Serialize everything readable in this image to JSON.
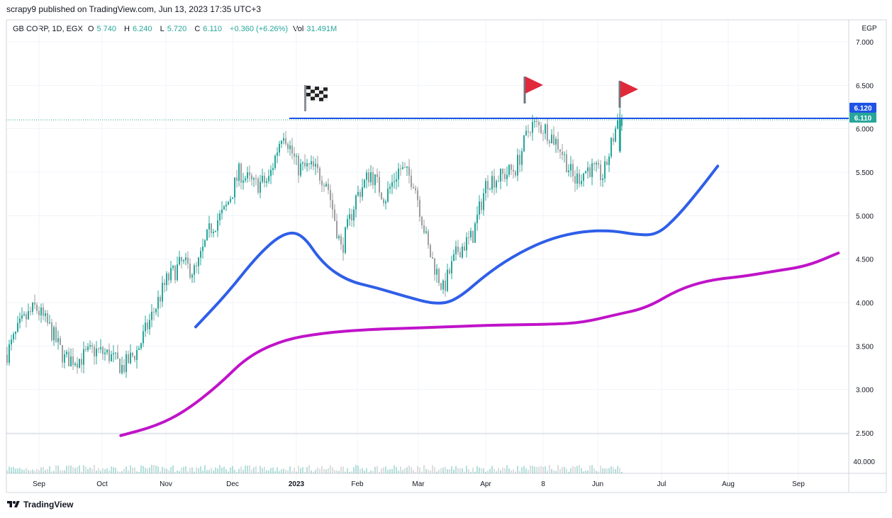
{
  "header": {
    "published": "scrapy9 published on TradingView.com, Jun 13, 2023 17:35 UTC+3"
  },
  "legend": {
    "symbol": "GB CORP, 1D, EGX",
    "open_label": "O",
    "open": "5.740",
    "high_label": "H",
    "high": "6.240",
    "low_label": "L",
    "low": "5.720",
    "close_label": "C",
    "close": "6.110",
    "change": "+0.360 (+6.26%)",
    "vol_label": "Vol",
    "volume": "31.491M"
  },
  "footer": {
    "brand": "TradingView"
  },
  "colors": {
    "up": "#26a69a",
    "down": "#9e9e9e",
    "hline": "#1e53e5",
    "ma_fast": "#2f5ee8",
    "ma_slow": "#c013c9",
    "flag": "#e0293b",
    "grid": "#f0f3fa"
  },
  "chart_data": {
    "type": "line",
    "title": "GB CORP, 1D, EGX",
    "currency": "EGP",
    "ylim": [
      2.5,
      7.1
    ],
    "x_tick_labels": [
      "Sep",
      "Oct",
      "Nov",
      "Dec",
      "2023",
      "Feb",
      "Mar",
      "Apr",
      "8",
      "Jun",
      "Jul",
      "Aug",
      "Sep"
    ],
    "y_tick_labels": [
      "7.000",
      "6.500",
      "6.000",
      "5.500",
      "5.000",
      "4.500",
      "4.000",
      "3.500",
      "3.000",
      "2.500"
    ],
    "volume_tick_label": "40.000",
    "price_labels": [
      {
        "text": "6.120",
        "value": 6.12
      },
      {
        "text": "6.110",
        "value": 6.11
      }
    ],
    "horizontal_line": {
      "value": 6.12,
      "from": "2023-01-04"
    },
    "annotations": [
      {
        "type": "checkered-flag",
        "date": "2023-01-04"
      },
      {
        "type": "red-flag",
        "date": "2023-05-08"
      },
      {
        "type": "red-flag",
        "date": "2023-06-13"
      }
    ],
    "price_points": [
      {
        "date": "2022-08-21",
        "value": 3.4
      },
      {
        "date": "2022-08-28",
        "value": 3.75
      },
      {
        "date": "2022-09-04",
        "value": 3.95
      },
      {
        "date": "2022-09-11",
        "value": 3.7
      },
      {
        "date": "2022-09-18",
        "value": 3.35
      },
      {
        "date": "2022-09-25",
        "value": 3.35
      },
      {
        "date": "2022-10-02",
        "value": 3.45
      },
      {
        "date": "2022-10-09",
        "value": 3.4
      },
      {
        "date": "2022-10-16",
        "value": 3.25
      },
      {
        "date": "2022-10-23",
        "value": 3.45
      },
      {
        "date": "2022-10-30",
        "value": 3.85
      },
      {
        "date": "2022-11-06",
        "value": 4.25
      },
      {
        "date": "2022-11-13",
        "value": 4.45
      },
      {
        "date": "2022-11-20",
        "value": 4.35
      },
      {
        "date": "2022-11-27",
        "value": 4.85
      },
      {
        "date": "2022-12-04",
        "value": 5.05
      },
      {
        "date": "2022-12-11",
        "value": 5.5
      },
      {
        "date": "2022-12-18",
        "value": 5.35
      },
      {
        "date": "2022-12-25",
        "value": 5.4
      },
      {
        "date": "2023-01-01",
        "value": 6.0
      },
      {
        "date": "2023-01-08",
        "value": 5.55
      },
      {
        "date": "2023-01-15",
        "value": 5.55
      },
      {
        "date": "2023-01-22",
        "value": 5.4
      },
      {
        "date": "2023-01-29",
        "value": 4.6
      },
      {
        "date": "2023-02-05",
        "value": 5.2
      },
      {
        "date": "2023-02-12",
        "value": 5.5
      },
      {
        "date": "2023-02-19",
        "value": 5.2
      },
      {
        "date": "2023-02-26",
        "value": 5.55
      },
      {
        "date": "2023-03-05",
        "value": 5.4
      },
      {
        "date": "2023-03-12",
        "value": 4.6
      },
      {
        "date": "2023-03-19",
        "value": 4.15
      },
      {
        "date": "2023-03-26",
        "value": 4.6
      },
      {
        "date": "2023-04-02",
        "value": 4.75
      },
      {
        "date": "2023-04-09",
        "value": 5.4
      },
      {
        "date": "2023-04-16",
        "value": 5.45
      },
      {
        "date": "2023-04-23",
        "value": 5.55
      },
      {
        "date": "2023-04-30",
        "value": 6.05
      },
      {
        "date": "2023-05-07",
        "value": 6.0
      },
      {
        "date": "2023-05-14",
        "value": 5.8
      },
      {
        "date": "2023-05-21",
        "value": 5.4
      },
      {
        "date": "2023-05-28",
        "value": 5.55
      },
      {
        "date": "2023-06-04",
        "value": 5.45
      },
      {
        "date": "2023-06-11",
        "value": 6.11
      }
    ],
    "series": [
      {
        "values": [
          {
            "date": "2022-11-20",
            "value": 3.72
          },
          {
            "date": "2022-12-05",
            "value": 4.1
          },
          {
            "date": "2022-12-20",
            "value": 4.55
          },
          {
            "date": "2023-01-01",
            "value": 4.8
          },
          {
            "date": "2023-01-10",
            "value": 4.8
          },
          {
            "date": "2023-01-20",
            "value": 4.45
          },
          {
            "date": "2023-02-01",
            "value": 4.25
          },
          {
            "date": "2023-02-15",
            "value": 4.17
          },
          {
            "date": "2023-03-01",
            "value": 4.07
          },
          {
            "date": "2023-03-15",
            "value": 3.98
          },
          {
            "date": "2023-03-25",
            "value": 4.02
          },
          {
            "date": "2023-04-10",
            "value": 4.35
          },
          {
            "date": "2023-04-25",
            "value": 4.58
          },
          {
            "date": "2023-05-10",
            "value": 4.74
          },
          {
            "date": "2023-05-25",
            "value": 4.82
          },
          {
            "date": "2023-06-08",
            "value": 4.83
          },
          {
            "date": "2023-06-20",
            "value": 4.78
          },
          {
            "date": "2023-06-30",
            "value": 4.78
          },
          {
            "date": "2023-07-10",
            "value": 5.0
          },
          {
            "date": "2023-07-21",
            "value": 5.32
          },
          {
            "date": "2023-07-29",
            "value": 5.57
          }
        ]
      },
      {
        "values": [
          {
            "date": "2022-10-15",
            "value": 2.47
          },
          {
            "date": "2022-11-01",
            "value": 2.58
          },
          {
            "date": "2022-11-15",
            "value": 2.75
          },
          {
            "date": "2022-12-01",
            "value": 3.05
          },
          {
            "date": "2022-12-15",
            "value": 3.38
          },
          {
            "date": "2023-01-01",
            "value": 3.57
          },
          {
            "date": "2023-01-20",
            "value": 3.65
          },
          {
            "date": "2023-02-10",
            "value": 3.69
          },
          {
            "date": "2023-03-10",
            "value": 3.71
          },
          {
            "date": "2023-04-10",
            "value": 3.74
          },
          {
            "date": "2023-05-10",
            "value": 3.75
          },
          {
            "date": "2023-05-25",
            "value": 3.77
          },
          {
            "date": "2023-06-10",
            "value": 3.86
          },
          {
            "date": "2023-06-25",
            "value": 3.94
          },
          {
            "date": "2023-07-10",
            "value": 4.15
          },
          {
            "date": "2023-07-25",
            "value": 4.26
          },
          {
            "date": "2023-08-10",
            "value": 4.3
          },
          {
            "date": "2023-08-25",
            "value": 4.36
          },
          {
            "date": "2023-09-10",
            "value": 4.42
          },
          {
            "date": "2023-09-25",
            "value": 4.57
          }
        ]
      }
    ]
  }
}
